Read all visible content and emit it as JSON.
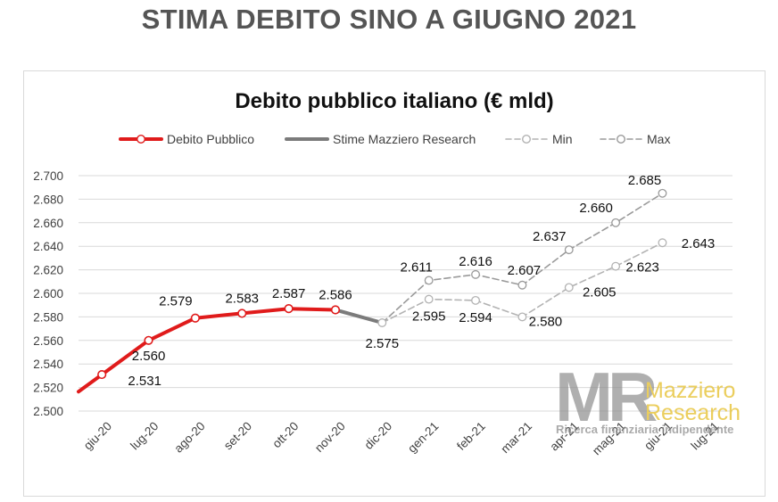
{
  "page": {
    "title": "STIMA DEBITO SINO A GIUGNO 2021"
  },
  "logo": {
    "initials": "MR",
    "line1": "Mazziero",
    "line2": "Research",
    "tagline": "Ricerca finanziaria indipendente"
  },
  "colors": {
    "actual": "#e01b1b",
    "estimate": "#7b7b7b",
    "min": "#b3b3b3",
    "max": "#9a9a9a",
    "grid": "#d9d9d9",
    "logo_gray": "#808080",
    "logo_gold": "#e9c94c"
  },
  "chart_data": {
    "type": "line",
    "title": "Debito pubblico italiano (€ mld)",
    "categories": [
      "giu-20",
      "lug-20",
      "ago-20",
      "set-20",
      "ott-20",
      "nov-20",
      "dic-20",
      "gen-21",
      "feb-21",
      "mar-21",
      "apr-21",
      "mag-21",
      "giu-21",
      "lug-21"
    ],
    "ylim": [
      2500,
      2700
    ],
    "yticks": [
      2500,
      2520,
      2540,
      2560,
      2580,
      2600,
      2620,
      2640,
      2660,
      2680,
      2700
    ],
    "ytick_labels": [
      "2.500",
      "2.520",
      "2.540",
      "2.560",
      "2.580",
      "2.600",
      "2.620",
      "2.640",
      "2.660",
      "2.680",
      "2.700"
    ],
    "grid": true,
    "legend_position": "top",
    "series": [
      {
        "name": "Debito Pubblico",
        "style": "actual",
        "values": [
          2531,
          2560,
          2579,
          2583,
          2587,
          2586,
          null,
          null,
          null,
          null,
          null,
          null,
          null,
          null
        ],
        "labels": [
          "2.531",
          "2.560",
          "2.579",
          "2.583",
          "2.587",
          "2.586",
          null,
          null,
          null,
          null,
          null,
          null,
          null,
          null
        ]
      },
      {
        "name": "Stime Mazziero Research",
        "style": "estimate",
        "values": [
          null,
          null,
          null,
          null,
          null,
          2586,
          2575,
          null,
          null,
          null,
          null,
          null,
          null,
          null
        ],
        "labels": [
          null,
          null,
          null,
          null,
          null,
          null,
          "2.575",
          null,
          null,
          null,
          null,
          null,
          null,
          null
        ]
      },
      {
        "name": "Min",
        "style": "min",
        "values": [
          null,
          null,
          null,
          null,
          null,
          null,
          2575,
          2595,
          2594,
          2580,
          2605,
          2623,
          2643,
          null
        ],
        "labels": [
          null,
          null,
          null,
          null,
          null,
          null,
          null,
          "2.595",
          "2.594",
          "2.580",
          "2.605",
          "2.623",
          "2.643",
          null
        ]
      },
      {
        "name": "Max",
        "style": "max",
        "values": [
          null,
          null,
          null,
          null,
          null,
          null,
          2575,
          2611,
          2616,
          2607,
          2637,
          2660,
          2685,
          null
        ],
        "labels": [
          null,
          null,
          null,
          null,
          null,
          null,
          null,
          "2.611",
          "2.616",
          "2.607",
          "2.637",
          "2.660",
          "2.685",
          null
        ]
      }
    ]
  }
}
